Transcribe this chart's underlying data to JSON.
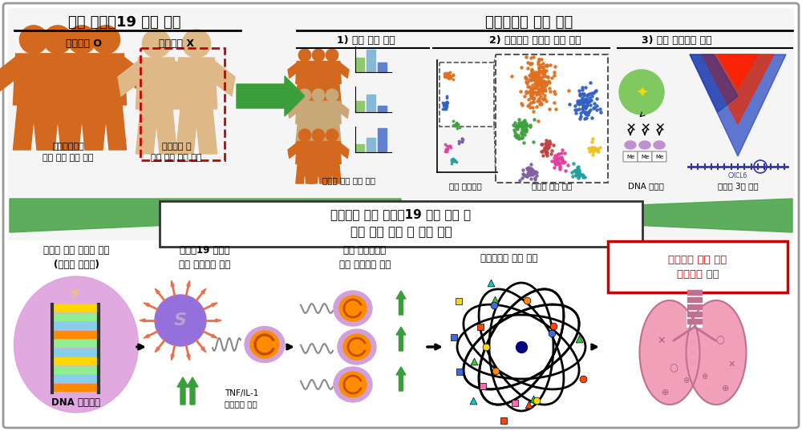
{
  "bg_color": "#ffffff",
  "border_color": "#999999",
  "title_left": "중증 코로나19 환자 그룹",
  "title_right": "생물정보학 기반 접근",
  "label_with": "기저질환 O",
  "label_without": "기저질환 X",
  "caption_with": "기저질환으로\n중증 원인 설명 가능",
  "caption_without": "기저질환 외\n중증 원인 규명 필요",
  "section1": "1) 환자 집단 분석",
  "section2": "2) 단일세포 유전자 발현 분석",
  "section3": "3) 후성 유전학적 분석",
  "label1": "집단별 특징 통계 검증",
  "label2": "혈액 면역세포",
  "label3": "단핵구 세부 분석",
  "label4": "DNA 메틸화",
  "label5": "염색질 3차 구조",
  "center_box_text": "기저질환 없는 코로나19 환자 그룹 내\n중증 진행 요인 및 기전 제시",
  "bottom_label1": "유전자 변이 단핵구 발생\n(클론성 조혈증)",
  "bottom_label2": "코로나19 감염시\n과잉 염증반응 발생",
  "bottom_label3": "정상 단핵구로의\n과잉 염증반응 확산",
  "bottom_label4": "사이토카인 폭풍 발생",
  "bottom_label5": "기저질환 없는 환자\n중증으로 진행",
  "bottom_sublabel": "TNF/IL-1\n인터페론 감마",
  "person_dark": "#D2691E",
  "person_light": "#DEB887",
  "green_arrow_color": "#3a9e3a",
  "box_border_red": "#cc0000",
  "dna_oval_color": "#DDA0DD",
  "virus_body_color": "#9370DB",
  "virus_spike_color": "#E8704A",
  "monocyte_orange": "#FF8C00",
  "monocyte_purple": "#C080C0",
  "monocyte_border": "#9050A0",
  "lung_color": "#F0A0B8",
  "lung_border": "#C07090"
}
